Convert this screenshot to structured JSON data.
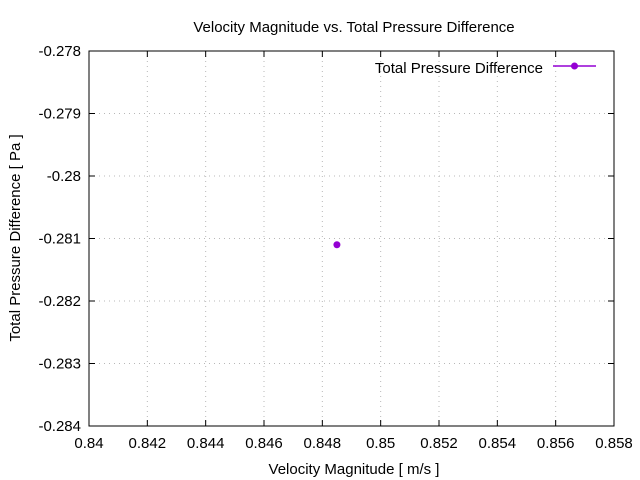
{
  "chart_data": {
    "type": "scatter",
    "title": "Velocity Magnitude vs. Total Pressure Difference",
    "xlabel": "Velocity Magnitude [ m/s ]",
    "ylabel": "Total Pressure Difference [ Pa ]",
    "xlim": [
      0.84,
      0.858
    ],
    "ylim": [
      -0.284,
      -0.278
    ],
    "xticks": [
      0.84,
      0.842,
      0.844,
      0.846,
      0.848,
      0.85,
      0.852,
      0.854,
      0.856,
      0.858
    ],
    "xtick_labels": [
      "0.84",
      "0.842",
      "0.844",
      "0.846",
      "0.848",
      "0.85",
      "0.852",
      "0.854",
      "0.856",
      "0.858"
    ],
    "yticks": [
      -0.284,
      -0.283,
      -0.282,
      -0.281,
      -0.28,
      -0.279,
      -0.278
    ],
    "ytick_labels": [
      "-0.284",
      "-0.283",
      "-0.282",
      "-0.281",
      "-0.28",
      "-0.279",
      "-0.278"
    ],
    "grid": true,
    "legend_position": "top-right",
    "series": [
      {
        "name": "Total Pressure Difference",
        "color": "#9400d3",
        "marker": "circle",
        "points": [
          {
            "x": 0.8485,
            "y": -0.2811
          }
        ]
      }
    ]
  }
}
